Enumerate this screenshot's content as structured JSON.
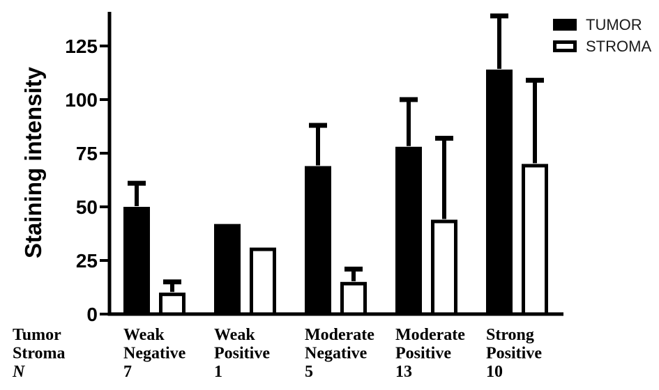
{
  "figure": {
    "background": "#ffffff",
    "foreground": "#000000"
  },
  "chart_data": {
    "type": "bar",
    "title": "",
    "xlabel": "",
    "ylabel": "Staining intensity",
    "ylim": [
      0,
      141
    ],
    "yticks": [
      0,
      25,
      50,
      75,
      100,
      125
    ],
    "grid": false,
    "legend_position": "top-right",
    "error_bars": "plus-sd-caps",
    "axis_color": "#000000",
    "error_bar_color": "#000000",
    "x_row_headers": [
      "Tumor",
      "Stroma",
      "N"
    ],
    "categories": [
      {
        "tumor": "Weak",
        "stroma": "Negative",
        "n": "7"
      },
      {
        "tumor": "Weak",
        "stroma": "Positive",
        "n": "1"
      },
      {
        "tumor": "Moderate",
        "stroma": "Negative",
        "n": "5"
      },
      {
        "tumor": "Moderate",
        "stroma": "Positive",
        "n": "13"
      },
      {
        "tumor": "Strong",
        "stroma": "Positive",
        "n": "10"
      }
    ],
    "series": [
      {
        "name": "TUMOR",
        "style": "filled",
        "fill": "#000000",
        "border": "#000000",
        "values": [
          50,
          42,
          69,
          78,
          114
        ],
        "errors_plus": [
          11,
          0,
          19,
          22,
          25
        ]
      },
      {
        "name": "STROMA",
        "style": "open",
        "fill": "#ffffff",
        "border": "#000000",
        "values": [
          10,
          31,
          15,
          44,
          70
        ],
        "errors_plus": [
          5,
          0,
          6,
          38,
          39
        ]
      }
    ]
  }
}
